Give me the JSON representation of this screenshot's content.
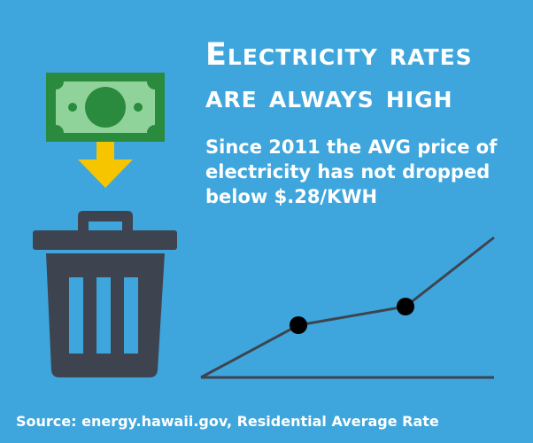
{
  "headline": {
    "line1": "Electricity rates",
    "line2": "are always high"
  },
  "subheadline": {
    "line1": "Since 2011 the AVG price of",
    "line2": "electricity has not dropped",
    "line3": "below $.28/KWH"
  },
  "source": "Source: energy.hawaii.gov, Residential Average Rate",
  "icons": {
    "money": "dollar-bill-icon",
    "arrow": "down-arrow-icon",
    "trash": "trash-can-icon"
  },
  "colors": {
    "background": "#3ea6dc",
    "bill_dark": "#2a8a3e",
    "bill_light": "#8fd39b",
    "arrow": "#f7c400",
    "trash": "#3d4450",
    "line": "#3d4450",
    "point": "#000000"
  }
}
